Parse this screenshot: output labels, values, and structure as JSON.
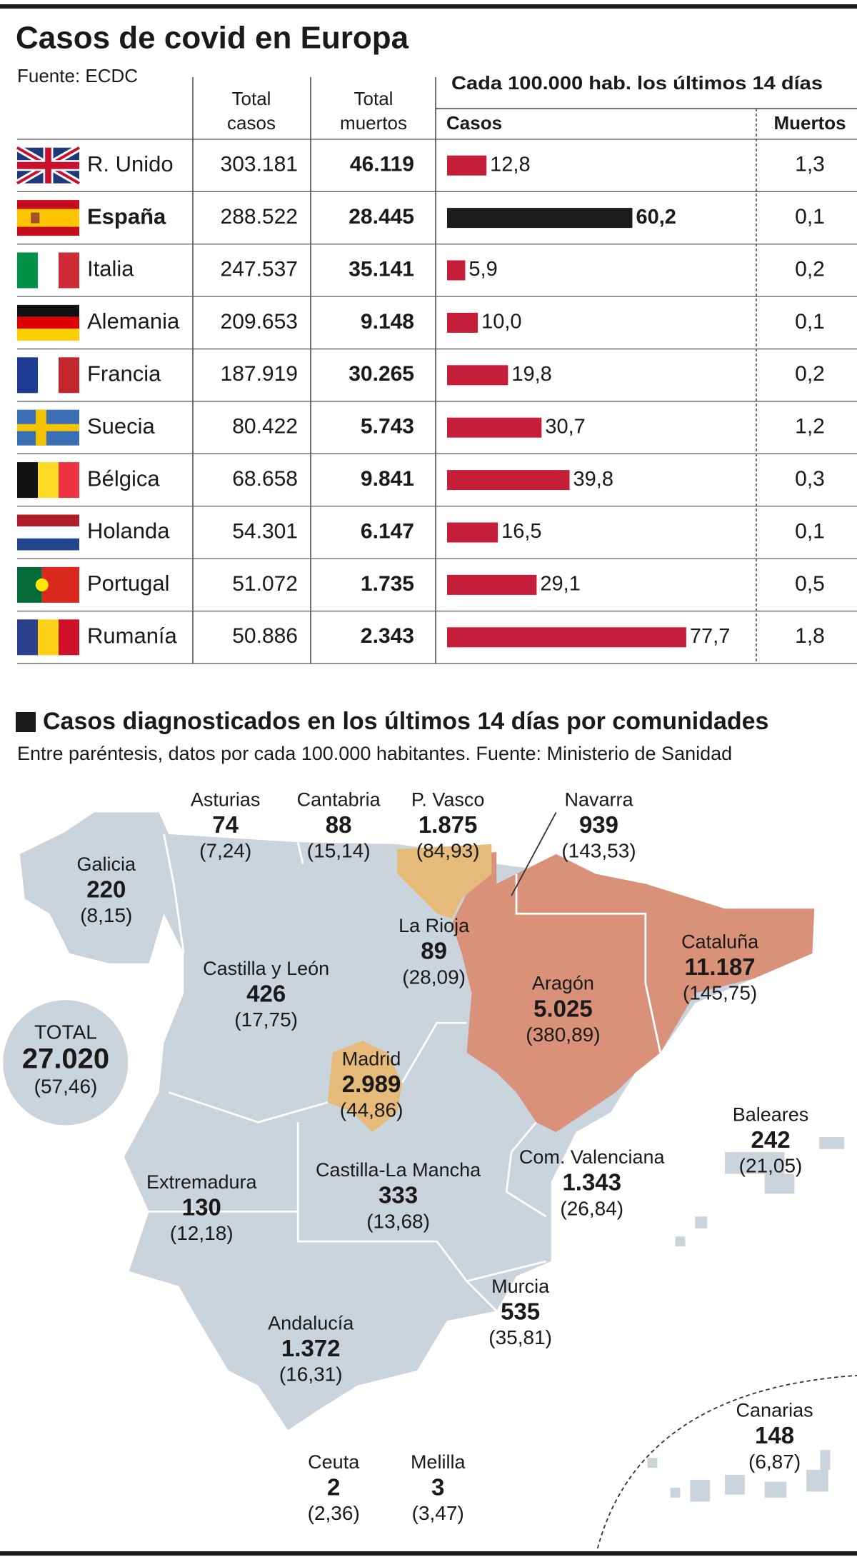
{
  "title": "Casos de covid en Europa",
  "source": "Fuente: ECDC",
  "table": {
    "headers": {
      "total_cases": [
        "Total",
        "casos"
      ],
      "total_deaths": [
        "Total",
        "muertos"
      ],
      "per_100k": "Cada 100.000 hab. los últimos 14 días",
      "cases": "Casos",
      "deaths": "Muertos"
    },
    "countries": [
      "R. Unido",
      "España",
      "Italia",
      "Alemania",
      "Francia",
      "Suecia",
      "Bélgica",
      "Holanda",
      "Portugal",
      "Rumanía"
    ],
    "total_cases": [
      "303.181",
      "288.522",
      "247.537",
      "209.653",
      "187.919",
      "80.422",
      "68.658",
      "54.301",
      "51.072",
      "50.886"
    ],
    "total_deaths": [
      "46.119",
      "28.445",
      "35.141",
      "9.148",
      "30.265",
      "5.743",
      "9.841",
      "6.147",
      "1.735",
      "2.343"
    ],
    "cases_per_100k": {
      "type": "bar",
      "values": [
        12.8,
        60.2,
        5.9,
        10.0,
        19.8,
        30.7,
        39.8,
        16.5,
        29.1,
        77.7
      ],
      "value_labels": [
        "12,8",
        "60,2",
        "5,9",
        "10,0",
        "19,8",
        "30,7",
        "39,8",
        "16,5",
        "29,1",
        "77,7"
      ],
      "color": "#c41e3a",
      "highlight": "España",
      "highlight_color": "#1c1c1c"
    },
    "deaths_per_100k": [
      "1,3",
      "0,1",
      "0,2",
      "0,1",
      "0,2",
      "1,2",
      "0,3",
      "0,1",
      "0,5",
      "1,8"
    ]
  },
  "map": {
    "title": "Casos diagnosticados en los últimos 14 días por comunidades",
    "subtitle": "Entre paréntesis, datos por cada 100.000 habitantes. Fuente: Ministerio de Sanidad",
    "total": {
      "label": "TOTAL",
      "cases": "27.020",
      "rate": "(57,46)"
    },
    "regions": [
      {
        "name": "Asturias",
        "cases": "74",
        "rate": "(7,24)"
      },
      {
        "name": "Cantabria",
        "cases": "88",
        "rate": "(15,14)"
      },
      {
        "name": "P. Vasco",
        "cases": "1.875",
        "rate": "(84,93)"
      },
      {
        "name": "Navarra",
        "cases": "939",
        "rate": "(143,53)"
      },
      {
        "name": "Galicia",
        "cases": "220",
        "rate": "(8,15)"
      },
      {
        "name": "La Rioja",
        "cases": "89",
        "rate": "(28,09)"
      },
      {
        "name": "Cataluña",
        "cases": "11.187",
        "rate": "(145,75)"
      },
      {
        "name": "Castilla y León",
        "cases": "426",
        "rate": "(17,75)"
      },
      {
        "name": "Aragón",
        "cases": "5.025",
        "rate": "(380,89)"
      },
      {
        "name": "Madrid",
        "cases": "2.989",
        "rate": "(44,86)"
      },
      {
        "name": "Baleares",
        "cases": "242",
        "rate": "(21,05)"
      },
      {
        "name": "Extremadura",
        "cases": "130",
        "rate": "(12,18)"
      },
      {
        "name": "Castilla-La Mancha",
        "cases": "333",
        "rate": "(13,68)"
      },
      {
        "name": "Com. Valenciana",
        "cases": "1.343",
        "rate": "(26,84)"
      },
      {
        "name": "Murcia",
        "cases": "535",
        "rate": "(35,81)"
      },
      {
        "name": "Andalucía",
        "cases": "1.372",
        "rate": "(16,31)"
      },
      {
        "name": "Canarias",
        "cases": "148",
        "rate": "(6,87)"
      },
      {
        "name": "Ceuta",
        "cases": "2",
        "rate": "(2,36)"
      },
      {
        "name": "Melilla",
        "cases": "3",
        "rate": "(3,47)"
      }
    ]
  }
}
